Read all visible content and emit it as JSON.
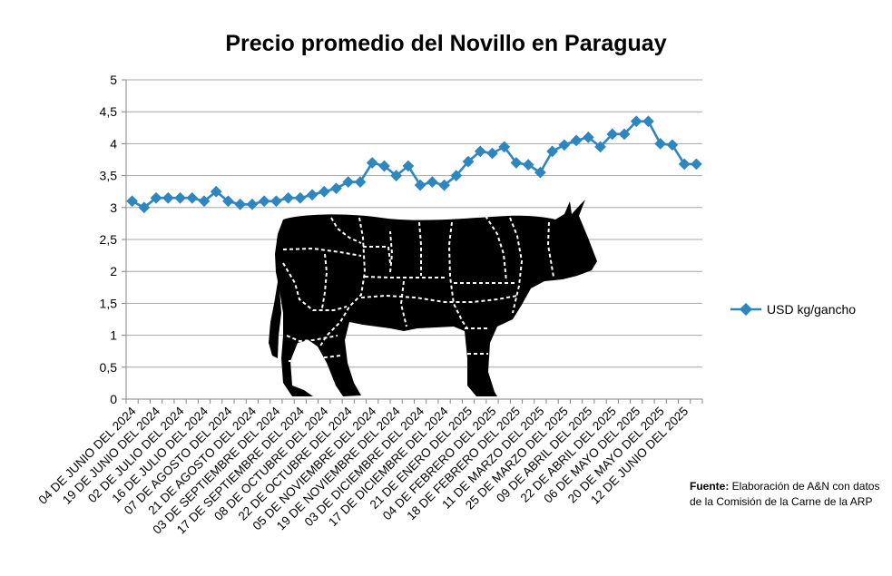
{
  "chart_data": {
    "type": "line",
    "title": "Precio promedio del Novillo en Paraguay",
    "xlabel": "",
    "ylabel": "",
    "ylim": [
      0,
      5
    ],
    "yticks": [
      "0",
      "0,5",
      "1",
      "1,5",
      "2",
      "2,5",
      "3",
      "3,5",
      "4",
      "4,5",
      "5"
    ],
    "grid": true,
    "legend_position": "right",
    "series_color": "#2e86c1",
    "x_tick_labels": [
      "04 DE JUNIO DEL 2024",
      "19 DE JUNIO DEL 2024",
      "02 DE JULIO DEL 2024",
      "16 DE JULIO DEL 2024",
      "07 DE AGOSTO DEL 2024",
      "21 DE AGOSTO DEL 2024",
      "03 DE SEPTIEMBRE DEL 2024",
      "17 DE SEPTIEMBRE DEL 2024",
      "08 DE OCTUBRE DEL 2024",
      "22 DE OCTUBRE DEL 2024",
      "05 DE NOVIEMBRE DEL 2024",
      "19 DE NOVIEMBRE DEL 2024",
      "03 DE DICIEMBRE DEL 2024",
      "17 DE DICIEMBRE DEL 2024",
      "21 DE ENERO DEL 2025",
      "04 DE FEBRERO DEL 2025",
      "18 DE FEBRERO DEL 2025",
      "11 DE MARZO DEL 2025",
      "25 DE MARZO DEL 2025",
      "09 DE ABRIL DEL 2025",
      "22 DE ABRIL DEL 2025",
      "06 DE MAYO DEL 2025",
      "20 DE MAYO DEL 2025",
      "12 DE JUNIO DEL 2025"
    ],
    "series": [
      {
        "name": "USD kg/gancho",
        "values": [
          3.1,
          3.0,
          3.15,
          3.15,
          3.15,
          3.15,
          3.1,
          3.25,
          3.1,
          3.05,
          3.05,
          3.1,
          3.1,
          3.15,
          3.15,
          3.2,
          3.25,
          3.3,
          3.4,
          3.4,
          3.7,
          3.65,
          3.5,
          3.65,
          3.35,
          3.4,
          3.35,
          3.5,
          3.72,
          3.88,
          3.85,
          3.95,
          3.7,
          3.67,
          3.55,
          3.88,
          3.98,
          4.05,
          4.1,
          3.95,
          4.15,
          4.15,
          4.35,
          4.35,
          4.0,
          3.98,
          3.68,
          3.68
        ]
      }
    ]
  },
  "source": {
    "label": "Fuente:",
    "text": " Elaboración de A&N con datos de la Comisión de la Carne de la ARP"
  }
}
